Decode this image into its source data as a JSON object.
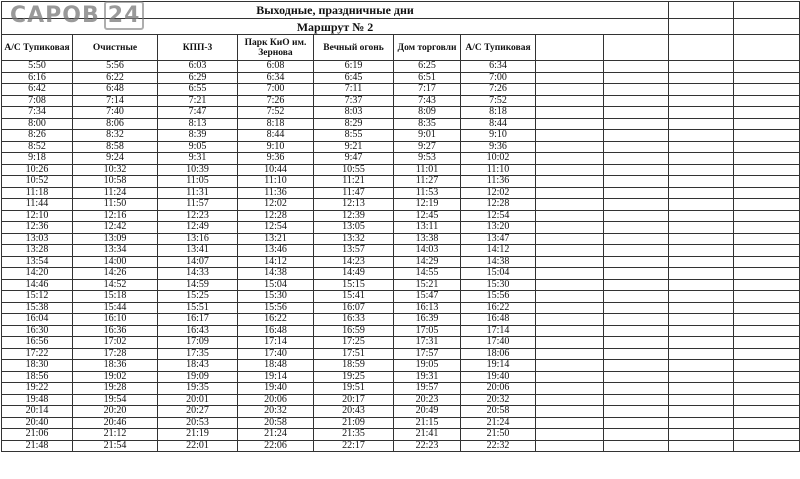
{
  "title": "Выходные, праздничные дни",
  "route": "Маршрут № 2",
  "watermark": {
    "text": "САРОВ",
    "num": "24"
  },
  "columns": [
    "А/С Тупиковая",
    "Очистные",
    "КПП-3",
    "Парк КиО им. Зернова",
    "Вечный огонь",
    "Дом торговли",
    "А/С Тупиковая"
  ],
  "rows": [
    [
      "5:50",
      "5:56",
      "6:03",
      "6:08",
      "6:19",
      "6:25",
      "6:34"
    ],
    [
      "6:16",
      "6:22",
      "6:29",
      "6:34",
      "6:45",
      "6:51",
      "7:00"
    ],
    [
      "6:42",
      "6:48",
      "6:55",
      "7:00",
      "7:11",
      "7:17",
      "7:26"
    ],
    [
      "7:08",
      "7:14",
      "7:21",
      "7:26",
      "7:37",
      "7:43",
      "7:52"
    ],
    [
      "7:34",
      "7:40",
      "7:47",
      "7:52",
      "8:03",
      "8:09",
      "8:18"
    ],
    [
      "8:00",
      "8:06",
      "8:13",
      "8:18",
      "8:29",
      "8:35",
      "8:44"
    ],
    [
      "8:26",
      "8:32",
      "8:39",
      "8:44",
      "8:55",
      "9:01",
      "9:10"
    ],
    [
      "8:52",
      "8:58",
      "9:05",
      "9:10",
      "9:21",
      "9:27",
      "9:36"
    ],
    [
      "9:18",
      "9:24",
      "9:31",
      "9:36",
      "9:47",
      "9:53",
      "10:02"
    ],
    [
      "10:26",
      "10:32",
      "10:39",
      "10:44",
      "10:55",
      "11:01",
      "11:10"
    ],
    [
      "10:52",
      "10:58",
      "11:05",
      "11:10",
      "11:21",
      "11:27",
      "11:36"
    ],
    [
      "11:18",
      "11:24",
      "11:31",
      "11:36",
      "11:47",
      "11:53",
      "12:02"
    ],
    [
      "11:44",
      "11:50",
      "11:57",
      "12:02",
      "12:13",
      "12:19",
      "12:28"
    ],
    [
      "12:10",
      "12:16",
      "12:23",
      "12:28",
      "12:39",
      "12:45",
      "12:54"
    ],
    [
      "12:36",
      "12:42",
      "12:49",
      "12:54",
      "13:05",
      "13:11",
      "13:20"
    ],
    [
      "13:03",
      "13:09",
      "13:16",
      "13:21",
      "13:32",
      "13:38",
      "13:47"
    ],
    [
      "13:28",
      "13:34",
      "13:41",
      "13:46",
      "13:57",
      "14:03",
      "14:12"
    ],
    [
      "13:54",
      "14:00",
      "14:07",
      "14:12",
      "14:23",
      "14:29",
      "14:38"
    ],
    [
      "14:20",
      "14:26",
      "14:33",
      "14:38",
      "14:49",
      "14:55",
      "15:04"
    ],
    [
      "14:46",
      "14:52",
      "14:59",
      "15:04",
      "15:15",
      "15:21",
      "15:30"
    ],
    [
      "15:12",
      "15:18",
      "15:25",
      "15:30",
      "15:41",
      "15:47",
      "15:56"
    ],
    [
      "15:38",
      "15:44",
      "15:51",
      "15:56",
      "16:07",
      "16:13",
      "16:22"
    ],
    [
      "16:04",
      "16:10",
      "16:17",
      "16:22",
      "16:33",
      "16:39",
      "16:48"
    ],
    [
      "16:30",
      "16:36",
      "16:43",
      "16:48",
      "16:59",
      "17:05",
      "17:14"
    ],
    [
      "16:56",
      "17:02",
      "17:09",
      "17:14",
      "17:25",
      "17:31",
      "17:40"
    ],
    [
      "17:22",
      "17:28",
      "17:35",
      "17:40",
      "17:51",
      "17:57",
      "18:06"
    ],
    [
      "18:30",
      "18:36",
      "18:43",
      "18:48",
      "18:59",
      "19:05",
      "19:14"
    ],
    [
      "18:56",
      "19:02",
      "19:09",
      "19:14",
      "19:25",
      "19:31",
      "19:40"
    ],
    [
      "19:22",
      "19:28",
      "19:35",
      "19:40",
      "19:51",
      "19:57",
      "20:06"
    ],
    [
      "19:48",
      "19:54",
      "20:01",
      "20:06",
      "20:17",
      "20:23",
      "20:32"
    ],
    [
      "20:14",
      "20:20",
      "20:27",
      "20:32",
      "20:43",
      "20:49",
      "20:58"
    ],
    [
      "20:40",
      "20:46",
      "20:53",
      "20:58",
      "21:09",
      "21:15",
      "21:24"
    ],
    [
      "21:06",
      "21:12",
      "21:19",
      "21:24",
      "21:35",
      "21:41",
      "21:50"
    ],
    [
      "21:48",
      "21:54",
      "22:01",
      "22:06",
      "22:17",
      "22:23",
      "22:32"
    ]
  ]
}
